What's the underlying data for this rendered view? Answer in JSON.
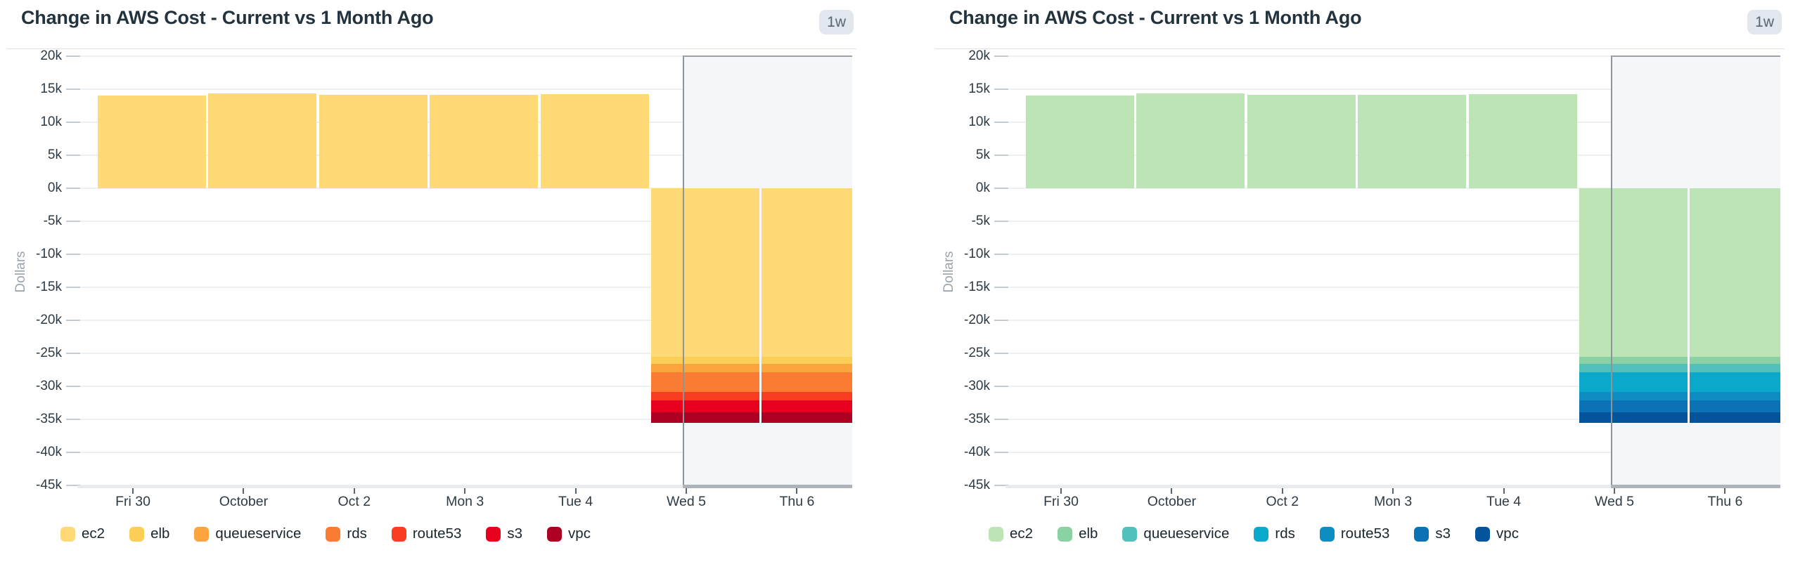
{
  "charts": [
    {
      "title": "Change in AWS Cost - Current vs 1 Month Ago",
      "time_range_badge": "1w",
      "chart_data": {
        "type": "bar",
        "stacked": true,
        "title": "Change in AWS Cost - Current vs 1 Month Ago",
        "ylabel": "Dollars",
        "categories": [
          "Fri 30",
          "October",
          "Oct 2",
          "Mon 3",
          "Tue 4",
          "Wed 5",
          "Thu 6"
        ],
        "series": [
          {
            "name": "ec2",
            "color": "#fed976",
            "values": [
              14000,
              14350,
              14200,
              14200,
              14300,
              -25500,
              -25500
            ]
          },
          {
            "name": "elb",
            "color": "#fdce55",
            "values": [
              0,
              0,
              0,
              0,
              0,
              -1050,
              -1050
            ]
          },
          {
            "name": "queueservice",
            "color": "#fca43d",
            "values": [
              0,
              0,
              0,
              0,
              0,
              -1300,
              -1300
            ]
          },
          {
            "name": "rds",
            "color": "#fa7b32",
            "values": [
              0,
              0,
              0,
              0,
              0,
              -3000,
              -3000
            ]
          },
          {
            "name": "route53",
            "color": "#f93c22",
            "values": [
              0,
              0,
              0,
              0,
              0,
              -1250,
              -1250
            ]
          },
          {
            "name": "s3",
            "color": "#e8001f",
            "values": [
              0,
              0,
              0,
              0,
              0,
              -1800,
              -1800
            ]
          },
          {
            "name": "vpc",
            "color": "#ad0022",
            "values": [
              0,
              0,
              0,
              0,
              0,
              -1600,
              -1600
            ]
          }
        ],
        "ylim": [
          -45000,
          20000
        ],
        "ytick_step": 5000,
        "ytick_labels": [
          "20k",
          "15k",
          "10k",
          "5k",
          "0k",
          "-5k",
          "-10k",
          "-15k",
          "-20k",
          "-25k",
          "-30k",
          "-35k",
          "-40k",
          "-45k"
        ],
        "grid": true,
        "legend_position": "bottom",
        "highlight_region": {
          "from_category": "Wed 5",
          "to": "end"
        }
      }
    },
    {
      "title": "Change in AWS Cost - Current vs 1 Month Ago",
      "time_range_badge": "1w",
      "chart_data": {
        "type": "bar",
        "stacked": true,
        "title": "Change in AWS Cost - Current vs 1 Month Ago",
        "ylabel": "Dollars",
        "categories": [
          "Fri 30",
          "October",
          "Oct 2",
          "Mon 3",
          "Tue 4",
          "Wed 5",
          "Thu 6"
        ],
        "series": [
          {
            "name": "ec2",
            "color": "#bce4b4",
            "values": [
              14000,
              14350,
              14200,
              14200,
              14300,
              -25500,
              -25500
            ]
          },
          {
            "name": "elb",
            "color": "#8ad1a4",
            "values": [
              0,
              0,
              0,
              0,
              0,
              -1050,
              -1050
            ]
          },
          {
            "name": "queueservice",
            "color": "#52c0bb",
            "values": [
              0,
              0,
              0,
              0,
              0,
              -1300,
              -1300
            ]
          },
          {
            "name": "rds",
            "color": "#0aa9cc",
            "values": [
              0,
              0,
              0,
              0,
              0,
              -3000,
              -3000
            ]
          },
          {
            "name": "route53",
            "color": "#0d8dc1",
            "values": [
              0,
              0,
              0,
              0,
              0,
              -1250,
              -1250
            ]
          },
          {
            "name": "s3",
            "color": "#0a72b5",
            "values": [
              0,
              0,
              0,
              0,
              0,
              -1800,
              -1800
            ]
          },
          {
            "name": "vpc",
            "color": "#04549b",
            "values": [
              0,
              0,
              0,
              0,
              0,
              -1600,
              -1600
            ]
          }
        ],
        "ylim": [
          -45000,
          20000
        ],
        "ytick_step": 5000,
        "ytick_labels": [
          "20k",
          "15k",
          "10k",
          "5k",
          "0k",
          "-5k",
          "-10k",
          "-15k",
          "-20k",
          "-25k",
          "-30k",
          "-35k",
          "-40k",
          "-45k"
        ],
        "grid": true,
        "legend_position": "bottom",
        "highlight_region": {
          "from_category": "Wed 5",
          "to": "end"
        }
      }
    }
  ]
}
